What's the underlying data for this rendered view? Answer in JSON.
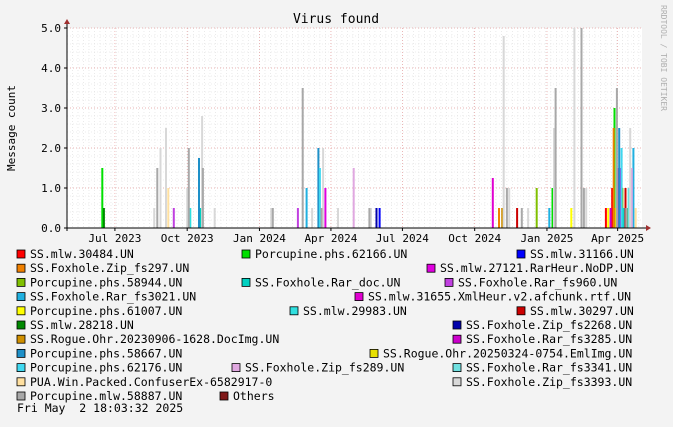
{
  "side_label": "RRDTOOL / TOBI OETIKER",
  "footer_timestamp": "Fri May  2 18:03:32 2025",
  "chart_data": {
    "type": "bar",
    "title": "Virus found",
    "ylabel": "Message count",
    "xlabel": "",
    "ylim": [
      0,
      5
    ],
    "yticks": [
      0.0,
      1.0,
      2.0,
      3.0,
      4.0,
      5.0
    ],
    "ytick_labels": [
      "0.0",
      "1.0",
      "2.0",
      "3.0",
      "4.0",
      "5.0"
    ],
    "x_range": [
      "2023-05-01",
      "2025-05-02"
    ],
    "xticks": [
      {
        "date": "2023-07-01",
        "label": "Jul 2023"
      },
      {
        "date": "2023-10-01",
        "label": "Oct 2023"
      },
      {
        "date": "2024-01-01",
        "label": "Jan 2024"
      },
      {
        "date": "2024-04-01",
        "label": "Apr 2024"
      },
      {
        "date": "2024-07-01",
        "label": "Jul 2024"
      },
      {
        "date": "2024-10-01",
        "label": "Oct 2024"
      },
      {
        "date": "2025-01-01",
        "label": "Jan 2025"
      },
      {
        "date": "2025-04-01",
        "label": "Apr 2025"
      }
    ],
    "grid": true,
    "legend_position": "bottom",
    "colors": {
      "background": "#f3f3f3",
      "plot_background": "#ffffff",
      "major_grid": "#e8a0a0",
      "minor_grid": "#dddddd",
      "axis": "#000000",
      "axis_arrow": "#a03030"
    },
    "series": [
      {
        "name": "SS.mlw.30484.UN",
        "color": "#ff0000",
        "points": [
          {
            "x": "2025-03-25",
            "y": 1.0
          },
          {
            "x": "2025-03-17",
            "y": 0.5
          }
        ]
      },
      {
        "name": "Porcupine.phs.62166.UN",
        "color": "#00e000",
        "points": [
          {
            "x": "2023-06-15",
            "y": 1.5
          },
          {
            "x": "2025-01-08",
            "y": 1.0
          },
          {
            "x": "2025-03-28",
            "y": 3.0
          }
        ]
      },
      {
        "name": "SS.mlw.31166.UN",
        "color": "#0000ff",
        "points": [
          {
            "x": "2024-06-02",
            "y": 0.5
          },
          {
            "x": "2025-04-14",
            "y": 0.5
          }
        ]
      },
      {
        "name": "SS.Foxhole.Zip_fs297.UN",
        "color": "#f08000",
        "points": [
          {
            "x": "2024-11-01",
            "y": 0.5
          },
          {
            "x": "2025-03-27",
            "y": 2.5
          }
        ]
      },
      {
        "name": "SS.mlw.27121.RarHeur.NoDP.UN",
        "color": "#e000e0",
        "points": [
          {
            "x": "2024-03-25",
            "y": 1.0
          },
          {
            "x": "2025-04-04",
            "y": 1.5
          }
        ]
      },
      {
        "name": "Porcupine.phs.58944.UN",
        "color": "#80c000",
        "points": [
          {
            "x": "2024-12-19",
            "y": 1.0
          },
          {
            "x": "2025-04-07",
            "y": 1.0
          }
        ]
      },
      {
        "name": "SS.Foxhole.Rar_doc.UN",
        "color": "#00d0c0",
        "points": [
          {
            "x": "2023-10-18",
            "y": 0.5
          },
          {
            "x": "2025-04-08",
            "y": 0.5
          }
        ]
      },
      {
        "name": "SS.Foxhole.Rar_fs960.UN",
        "color": "#c040e0",
        "points": [
          {
            "x": "2023-09-14",
            "y": 0.5
          },
          {
            "x": "2024-02-19",
            "y": 0.5
          },
          {
            "x": "2025-04-01",
            "y": 1.5
          }
        ]
      },
      {
        "name": "SS.Foxhole.Rar_fs3021.UN",
        "color": "#20b0e0",
        "points": [
          {
            "x": "2024-03-01",
            "y": 1.0
          },
          {
            "x": "2025-01-04",
            "y": 0.5
          },
          {
            "x": "2025-04-21",
            "y": 2.0
          }
        ]
      },
      {
        "name": "SS.mlw.31655.XmlHeur.v2.afchunk.rtf.UN",
        "color": "#e000d0",
        "points": [
          {
            "x": "2024-10-24",
            "y": 1.25
          },
          {
            "x": "2025-04-02",
            "y": 1.5
          }
        ]
      },
      {
        "name": "Porcupine.phs.61007.UN",
        "color": "#ffff00",
        "points": [
          {
            "x": "2025-02-01",
            "y": 0.5
          },
          {
            "x": "2025-03-20",
            "y": 0.5
          }
        ]
      },
      {
        "name": "SS.mlw.29983.UN",
        "color": "#30e0e0",
        "points": [
          {
            "x": "2023-10-05",
            "y": 0.5
          },
          {
            "x": "2025-04-10",
            "y": 0.5
          }
        ]
      },
      {
        "name": "SS.mlw.30297.UN",
        "color": "#cc0000",
        "points": [
          {
            "x": "2024-11-24",
            "y": 0.5
          },
          {
            "x": "2025-04-11",
            "y": 1.0
          }
        ]
      },
      {
        "name": "SS.mlw.28218.UN",
        "color": "#008800",
        "points": [
          {
            "x": "2023-06-17",
            "y": 0.5
          },
          {
            "x": "2025-04-13",
            "y": 0.5
          }
        ]
      },
      {
        "name": "SS.Foxhole.Zip_fs2268.UN",
        "color": "#0000aa",
        "points": [
          {
            "x": "2024-05-29",
            "y": 0.5
          },
          {
            "x": "2025-04-16",
            "y": 0.5
          }
        ]
      },
      {
        "name": "SS.Rogue.Ohr.20230906-1628.DocImg.UN",
        "color": "#d09000",
        "points": [
          {
            "x": "2024-11-05",
            "y": 0.5
          },
          {
            "x": "2025-03-29",
            "y": 0.5
          }
        ]
      },
      {
        "name": "SS.Foxhole.Rar_fs3285.UN",
        "color": "#cc00cc",
        "points": [
          {
            "x": "2025-03-23",
            "y": 0.5
          }
        ]
      },
      {
        "name": "Porcupine.phs.58667.UN",
        "color": "#1e90c8",
        "points": [
          {
            "x": "2023-10-16",
            "y": 1.75
          },
          {
            "x": "2024-03-16",
            "y": 2.0
          },
          {
            "x": "2025-04-03",
            "y": 2.5
          }
        ]
      },
      {
        "name": "SS.Rogue.Ohr.20250324-0754.EmlImg.UN",
        "color": "#e8e000",
        "points": [
          {
            "x": "2025-03-30",
            "y": 0.5
          }
        ]
      },
      {
        "name": "Porcupine.phs.62176.UN",
        "color": "#40d8f0",
        "points": [
          {
            "x": "2024-03-18",
            "y": 1.5
          },
          {
            "x": "2025-04-06",
            "y": 2.0
          }
        ]
      },
      {
        "name": "SS.Foxhole.Zip_fs289.UN",
        "color": "#e0a8e0",
        "points": [
          {
            "x": "2024-04-30",
            "y": 1.5
          },
          {
            "x": "2025-04-19",
            "y": 1.5
          }
        ]
      },
      {
        "name": "SS.Foxhole.Rar_fs3341.UN",
        "color": "#70e0e0",
        "points": [
          {
            "x": "2025-04-15",
            "y": 1.0
          }
        ]
      },
      {
        "name": "PUA.Win.Packed.ConfuserEx-6582917-0",
        "color": "#ffe0a0",
        "points": [
          {
            "x": "2023-09-07",
            "y": 1.0
          },
          {
            "x": "2025-04-24",
            "y": 0.5
          }
        ]
      },
      {
        "name": "SS.Foxhole.Zip_fs3393.UN",
        "color": "#d8d8d8",
        "points": [
          {
            "x": "2023-08-20",
            "y": 0.5
          },
          {
            "x": "2023-08-28",
            "y": 2.0
          },
          {
            "x": "2023-09-04",
            "y": 2.5
          },
          {
            "x": "2023-10-01",
            "y": 1.0
          },
          {
            "x": "2023-10-20",
            "y": 2.8
          },
          {
            "x": "2023-11-05",
            "y": 0.5
          },
          {
            "x": "2024-01-16",
            "y": 0.5
          },
          {
            "x": "2024-03-08",
            "y": 0.5
          },
          {
            "x": "2024-03-22",
            "y": 2.0
          },
          {
            "x": "2024-04-10",
            "y": 0.5
          },
          {
            "x": "2024-05-22",
            "y": 0.5
          },
          {
            "x": "2024-11-07",
            "y": 4.8
          },
          {
            "x": "2024-11-14",
            "y": 1.0
          },
          {
            "x": "2024-12-08",
            "y": 0.5
          },
          {
            "x": "2025-01-10",
            "y": 2.5
          },
          {
            "x": "2025-02-05",
            "y": 5.0
          },
          {
            "x": "2025-02-20",
            "y": 1.0
          },
          {
            "x": "2025-04-17",
            "y": 2.5
          }
        ]
      },
      {
        "name": "Porcupine.mlw.58887.UN",
        "color": "#a8a8a8",
        "points": [
          {
            "x": "2023-08-24",
            "y": 1.5
          },
          {
            "x": "2023-10-03",
            "y": 2.0
          },
          {
            "x": "2023-10-21",
            "y": 1.5
          },
          {
            "x": "2024-01-18",
            "y": 0.5
          },
          {
            "x": "2024-02-25",
            "y": 3.5
          },
          {
            "x": "2024-03-20",
            "y": 0.5
          },
          {
            "x": "2024-05-20",
            "y": 0.5
          },
          {
            "x": "2024-11-11",
            "y": 1.0
          },
          {
            "x": "2024-11-30",
            "y": 0.5
          },
          {
            "x": "2025-01-12",
            "y": 3.5
          },
          {
            "x": "2025-02-14",
            "y": 5.0
          },
          {
            "x": "2025-02-17",
            "y": 1.0
          },
          {
            "x": "2025-03-31",
            "y": 3.5
          },
          {
            "x": "2025-04-12",
            "y": 0.5
          }
        ]
      },
      {
        "name": "Others",
        "color": "#801818",
        "points": []
      }
    ]
  }
}
